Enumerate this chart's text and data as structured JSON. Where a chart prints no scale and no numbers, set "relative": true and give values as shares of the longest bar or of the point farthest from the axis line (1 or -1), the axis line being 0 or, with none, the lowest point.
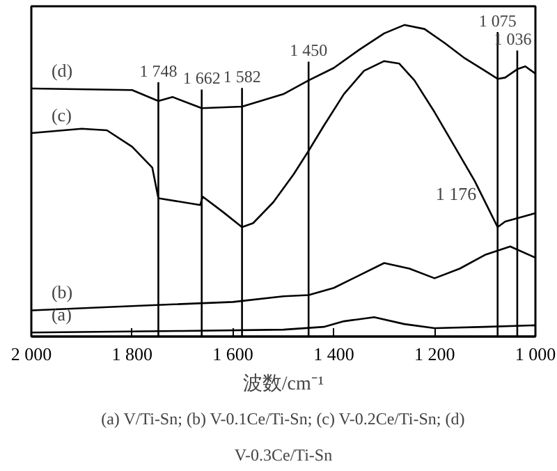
{
  "chart_data": {
    "type": "line",
    "relative": true,
    "xlabel": "波数/cm⁻¹",
    "xlim": [
      2000,
      1000
    ],
    "xticks": [
      {
        "value": 2000,
        "label": "2 000"
      },
      {
        "value": 1800,
        "label": "1 800"
      },
      {
        "value": 1600,
        "label": "1 600"
      },
      {
        "value": 1400,
        "label": "1 400"
      },
      {
        "value": 1200,
        "label": "1 200"
      },
      {
        "value": 1000,
        "label": "1 000"
      }
    ],
    "grid": false,
    "legend": false,
    "marker": "none",
    "line_style": "solid",
    "series": [
      {
        "name": "(a)",
        "color": "#000000",
        "x": [
          2000,
          1700,
          1500,
          1420,
          1380,
          1320,
          1260,
          1200,
          1100,
          1000
        ],
        "values": [
          0.013,
          0.018,
          0.022,
          0.031,
          0.049,
          0.062,
          0.04,
          0.027,
          0.031,
          0.036
        ]
      },
      {
        "name": "(b)",
        "color": "#000000",
        "x": [
          2000,
          1800,
          1600,
          1500,
          1450,
          1400,
          1350,
          1300,
          1250,
          1200,
          1150,
          1100,
          1050,
          1000
        ],
        "values": [
          0.084,
          0.098,
          0.111,
          0.129,
          0.133,
          0.156,
          0.196,
          0.236,
          0.218,
          0.187,
          0.218,
          0.262,
          0.289,
          0.253
        ]
      },
      {
        "name": "(c)",
        "color": "#000000",
        "x": [
          2000,
          1900,
          1850,
          1800,
          1760,
          1748,
          1665,
          1660,
          1620,
          1582,
          1560,
          1520,
          1480,
          1450,
          1420,
          1380,
          1340,
          1300,
          1270,
          1240,
          1200,
          1160,
          1120,
          1090,
          1075,
          1060,
          1040,
          1020,
          1000
        ],
        "values": [
          0.653,
          0.667,
          0.662,
          0.609,
          0.542,
          0.444,
          0.422,
          0.449,
          0.4,
          0.351,
          0.364,
          0.431,
          0.52,
          0.596,
          0.676,
          0.778,
          0.853,
          0.884,
          0.876,
          0.822,
          0.72,
          0.609,
          0.498,
          0.4,
          0.351,
          0.369,
          0.378,
          0.387,
          0.396
        ]
      },
      {
        "name": "(d)",
        "color": "#000000",
        "x": [
          2000,
          1800,
          1748,
          1720,
          1662,
          1582,
          1500,
          1450,
          1400,
          1350,
          1300,
          1260,
          1220,
          1180,
          1140,
          1100,
          1075,
          1060,
          1036,
          1020,
          1000
        ],
        "values": [
          0.796,
          0.791,
          0.756,
          0.769,
          0.733,
          0.738,
          0.778,
          0.822,
          0.862,
          0.92,
          0.973,
          1.0,
          0.987,
          0.942,
          0.893,
          0.853,
          0.827,
          0.831,
          0.858,
          0.867,
          0.844
        ]
      }
    ],
    "ref_lines": [
      {
        "axis": "x",
        "value": 1748,
        "label": "1 748"
      },
      {
        "axis": "x",
        "value": 1662,
        "label": "1 662"
      },
      {
        "axis": "x",
        "value": 1582,
        "label": "1 582"
      },
      {
        "axis": "x",
        "value": 1450,
        "label": "1 450"
      },
      {
        "axis": "x",
        "value": 1075,
        "label": "1 075"
      },
      {
        "axis": "x",
        "value": 1036,
        "label": "1 036"
      }
    ],
    "annotations": [
      "1 176",
      "(a) V/Ti-Sn; (b) V-0.1Ce/Ti-Sn; (c) V-0.2Ce/Ti-Sn; (d) V-0.3Ce/Ti-Sn"
    ]
  }
}
